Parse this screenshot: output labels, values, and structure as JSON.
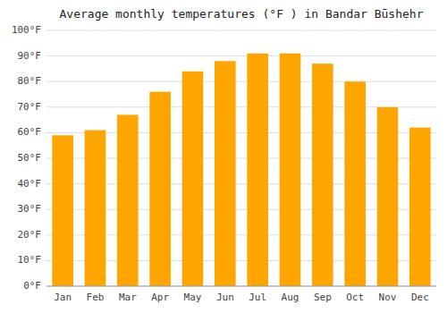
{
  "chart_data": {
    "type": "bar",
    "title": "Average monthly temperatures (°F ) in Bandar Būshehr",
    "categories": [
      "Jan",
      "Feb",
      "Mar",
      "Apr",
      "May",
      "Jun",
      "Jul",
      "Aug",
      "Sep",
      "Oct",
      "Nov",
      "Dec"
    ],
    "values": [
      59,
      61,
      67,
      76,
      84,
      88,
      91,
      91,
      87,
      80,
      70,
      62
    ],
    "color": "#FFA500",
    "ylim": [
      0,
      100
    ],
    "yticks": [
      {
        "value": 0,
        "label": "0°F"
      },
      {
        "value": 10,
        "label": "10°F"
      },
      {
        "value": 20,
        "label": "20°F"
      },
      {
        "value": 30,
        "label": "30°F"
      },
      {
        "value": 40,
        "label": "40°F"
      },
      {
        "value": 50,
        "label": "50°F"
      },
      {
        "value": 60,
        "label": "60°F"
      },
      {
        "value": 70,
        "label": "70°F"
      },
      {
        "value": 80,
        "label": "80°F"
      },
      {
        "value": 90,
        "label": "90°F"
      },
      {
        "value": 100,
        "label": "100°F"
      }
    ],
    "grid": true
  }
}
